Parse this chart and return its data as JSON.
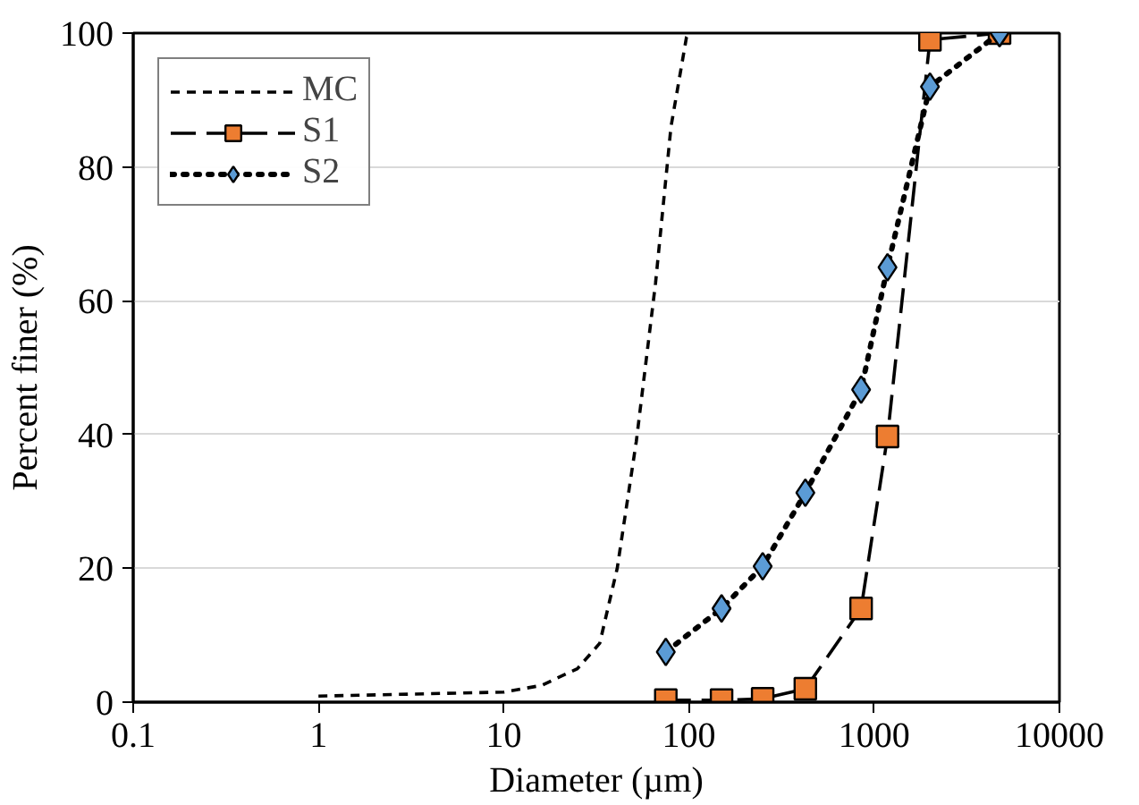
{
  "chart_data": {
    "type": "line",
    "xlabel": "Diameter (µm)",
    "ylabel": "Percent finer (%)",
    "log": "x",
    "xlim": [
      0.1,
      10000
    ],
    "xticks": [
      0.1,
      1,
      10,
      100,
      1000,
      10000
    ],
    "ylim": [
      0,
      100
    ],
    "yticks": [
      0,
      20,
      40,
      60,
      80,
      100
    ],
    "grid": "y",
    "legend": "top left",
    "series": [
      {
        "name": "MC",
        "color": "#000000",
        "marker": "none",
        "line_style": "dashed",
        "x": [
          1,
          10,
          16,
          25,
          33,
          41,
          52,
          66,
          80,
          97,
          100
        ],
        "values": [
          0.9,
          1.5,
          2.5,
          5,
          8.8,
          20,
          39,
          62.6,
          86,
          99.4,
          100
        ]
      },
      {
        "name": "S1",
        "color": "#ed7d31",
        "marker": "square",
        "line_style": "longdash",
        "x": [
          75,
          150,
          250,
          425,
          850,
          1180,
          2000,
          4750
        ],
        "values": [
          0.3,
          0.3,
          0.5,
          2,
          14,
          39.7,
          99,
          100
        ]
      },
      {
        "name": "S2",
        "color": "#5b9bd5",
        "marker": "diamond",
        "line_style": "dotted",
        "x": [
          75,
          150,
          250,
          425,
          850,
          1180,
          2000,
          4750
        ],
        "values": [
          7.5,
          14,
          20.3,
          31.3,
          46.7,
          65,
          92,
          100
        ]
      }
    ]
  }
}
